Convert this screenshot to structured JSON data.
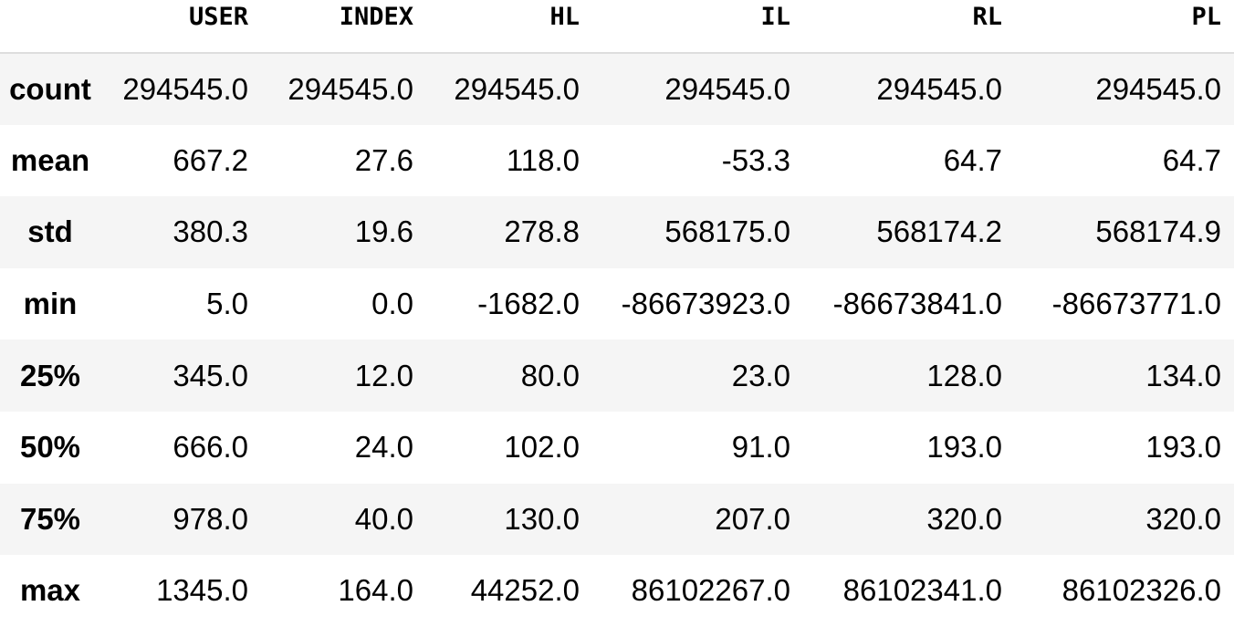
{
  "table": {
    "columns": [
      "USER",
      "INDEX",
      "HL",
      "IL",
      "RL",
      "PL"
    ],
    "rows": [
      {
        "label": "count",
        "values": [
          "294545.0",
          "294545.0",
          "294545.0",
          "294545.0",
          "294545.0",
          "294545.0"
        ]
      },
      {
        "label": "mean",
        "values": [
          "667.2",
          "27.6",
          "118.0",
          "-53.3",
          "64.7",
          "64.7"
        ]
      },
      {
        "label": "std",
        "values": [
          "380.3",
          "19.6",
          "278.8",
          "568175.0",
          "568174.2",
          "568174.9"
        ]
      },
      {
        "label": "min",
        "values": [
          "5.0",
          "0.0",
          "-1682.0",
          "-86673923.0",
          "-86673841.0",
          "-86673771.0"
        ]
      },
      {
        "label": "25%",
        "values": [
          "345.0",
          "12.0",
          "80.0",
          "23.0",
          "128.0",
          "134.0"
        ]
      },
      {
        "label": "50%",
        "values": [
          "666.0",
          "24.0",
          "102.0",
          "91.0",
          "193.0",
          "193.0"
        ]
      },
      {
        "label": "75%",
        "values": [
          "978.0",
          "40.0",
          "130.0",
          "207.0",
          "320.0",
          "320.0"
        ]
      },
      {
        "label": "max",
        "values": [
          "1345.0",
          "164.0",
          "44252.0",
          "86102267.0",
          "86102341.0",
          "86102326.0"
        ]
      }
    ]
  }
}
